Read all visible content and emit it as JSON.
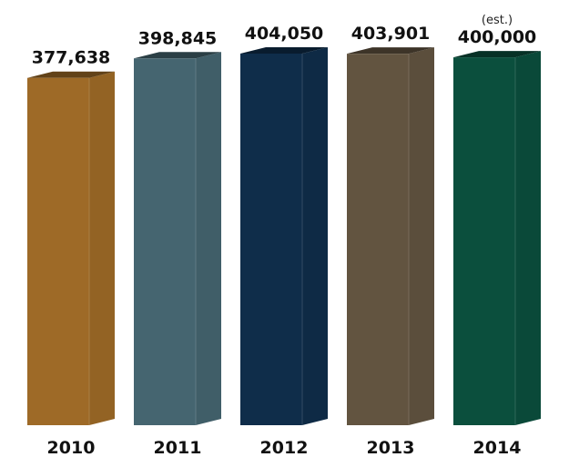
{
  "chart_data": {
    "type": "bar",
    "style": "3d-columns",
    "categories": [
      "2010",
      "2011",
      "2012",
      "2013",
      "2014"
    ],
    "values": [
      377638,
      398845,
      404050,
      403901,
      400000
    ],
    "value_labels": [
      "377,638",
      "398,845",
      "404,050",
      "403,901",
      "400,000"
    ],
    "annotations": [
      {
        "category": "2014",
        "text": "(est.)"
      }
    ],
    "title": "",
    "xlabel": "",
    "ylabel": "",
    "ylim": [
      0,
      404050
    ],
    "grid": false,
    "legend": "none",
    "colors": [
      "#9e6a27",
      "#456570",
      "#0f2d4a",
      "#625440",
      "#0b4f3d"
    ]
  }
}
